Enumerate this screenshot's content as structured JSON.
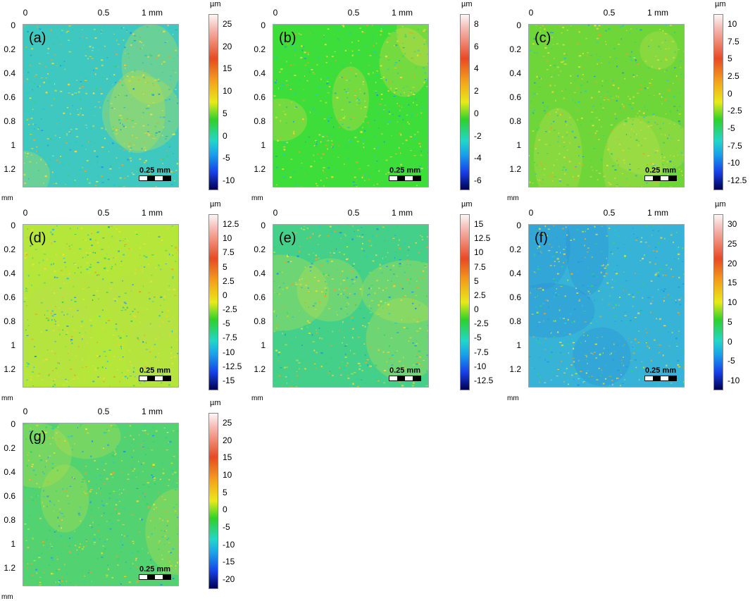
{
  "x_ticks": [
    "0",
    "0.5",
    "1 mm"
  ],
  "y_ticks": [
    "0",
    "0.2",
    "0.4",
    "0.6",
    "0.8",
    "1",
    "1.2"
  ],
  "axis_unit": "mm",
  "colorbar_unit": "µm",
  "scale_bar": "0.25 mm",
  "panels": [
    {
      "label": "(a)",
      "colorbar": [
        "25",
        "20",
        "15",
        "10",
        "5",
        "0",
        "-5",
        "-10"
      ],
      "base_color": "#3fc8c0"
    },
    {
      "label": "(b)",
      "colorbar": [
        "8",
        "6",
        "4",
        "2",
        "0",
        "-2",
        "-4",
        "-6"
      ],
      "base_color": "#3ddd3a"
    },
    {
      "label": "(c)",
      "colorbar": [
        "10",
        "7.5",
        "5",
        "2.5",
        "0",
        "-2.5",
        "-5",
        "-7.5",
        "-10",
        "-12.5"
      ],
      "base_color": "#6fd63a"
    },
    {
      "label": "(d)",
      "colorbar": [
        "12.5",
        "10",
        "7.5",
        "5",
        "2.5",
        "0",
        "-2.5",
        "-5",
        "-7.5",
        "-10",
        "-12.5",
        "-15"
      ],
      "base_color": "#b5e63a"
    },
    {
      "label": "(e)",
      "colorbar": [
        "15",
        "12.5",
        "10",
        "7.5",
        "5",
        "2.5",
        "0",
        "-2.5",
        "-5",
        "-7.5",
        "-10",
        "-12.5"
      ],
      "base_color": "#45d089"
    },
    {
      "label": "(f)",
      "colorbar": [
        "30",
        "25",
        "20",
        "15",
        "10",
        "5",
        "0",
        "-5",
        "-10"
      ],
      "base_color": "#36b3d6"
    },
    {
      "label": "(g)",
      "colorbar": [
        "25",
        "20",
        "15",
        "10",
        "5",
        "0",
        "-5",
        "-10",
        "-15",
        "-20"
      ],
      "base_color": "#52d270"
    }
  ]
}
